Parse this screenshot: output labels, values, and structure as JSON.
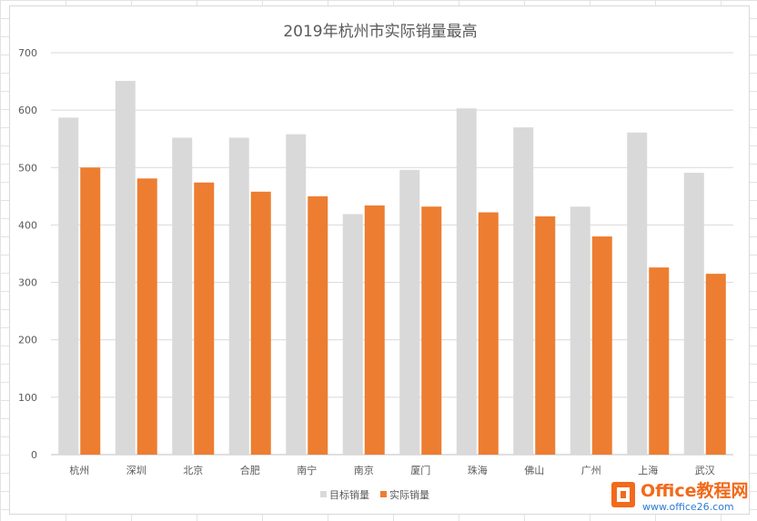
{
  "chart_data": {
    "type": "bar",
    "title": "2019年杭州市实际销量最高",
    "categories": [
      "杭州",
      "深圳",
      "北京",
      "合肥",
      "南宁",
      "南京",
      "厦门",
      "珠海",
      "佛山",
      "广州",
      "上海",
      "武汉"
    ],
    "series": [
      {
        "name": "目标销量",
        "color": "#d9d9d9",
        "values": [
          587,
          651,
          552,
          552,
          558,
          419,
          496,
          603,
          570,
          432,
          561,
          491
        ]
      },
      {
        "name": "实际销量",
        "color": "#ed7d31",
        "values": [
          500,
          481,
          474,
          458,
          450,
          434,
          432,
          422,
          415,
          380,
          326,
          315
        ]
      }
    ],
    "ylim": [
      0,
      700
    ],
    "yticks": [
      0,
      100,
      200,
      300,
      400,
      500,
      600,
      700
    ],
    "grid": true,
    "legend_position": "bottom"
  },
  "watermark": {
    "name": "Office教程网",
    "url": "www.office26.com"
  }
}
